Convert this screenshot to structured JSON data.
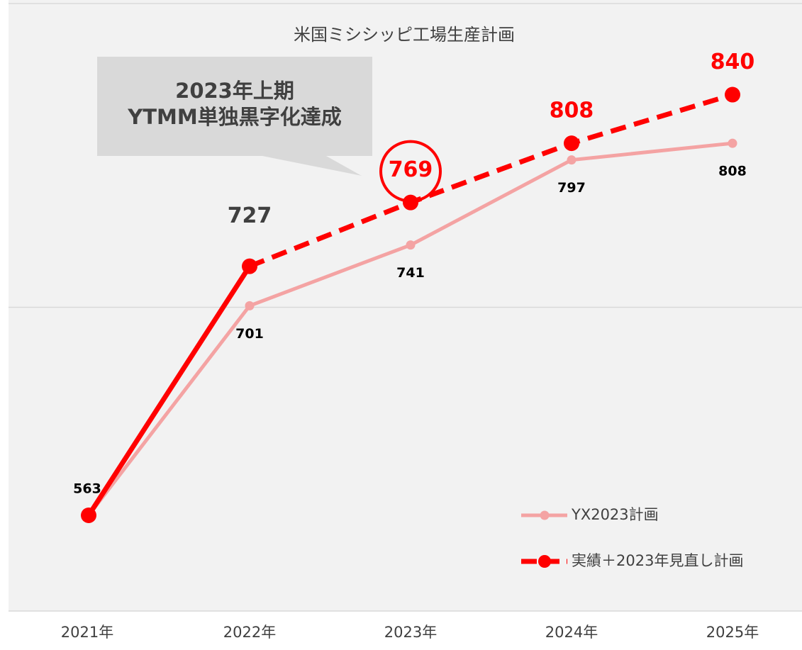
{
  "chart_data": {
    "type": "line",
    "title": "米国ミシシッピ工場生産計画",
    "annotation": [
      "2023年上期",
      "YTMM単独黒字化達成"
    ],
    "categories": [
      "2021年",
      "2022年",
      "2023年",
      "2024年",
      "2025年"
    ],
    "series": [
      {
        "name": "YX2023計画",
        "color": "#f4a3a3",
        "values": [
          563,
          701,
          741,
          797,
          808
        ],
        "label_colors": [
          "#000000",
          "#000000",
          "#000000",
          "#000000",
          "#000000"
        ]
      },
      {
        "name": "実績＋2023年見直し計画",
        "color": "#ff0000",
        "values": [
          563,
          727,
          769,
          808,
          840
        ],
        "label_colors": [
          null,
          "#404040",
          "#ff0000",
          "#ff0000",
          "#ff0000"
        ]
      }
    ],
    "highlight_index": 2,
    "ylim": [
      500,
      900
    ],
    "yticks": [
      500,
      700,
      900
    ],
    "show_tick_labels": false,
    "grid": true,
    "legend": "lower right"
  }
}
